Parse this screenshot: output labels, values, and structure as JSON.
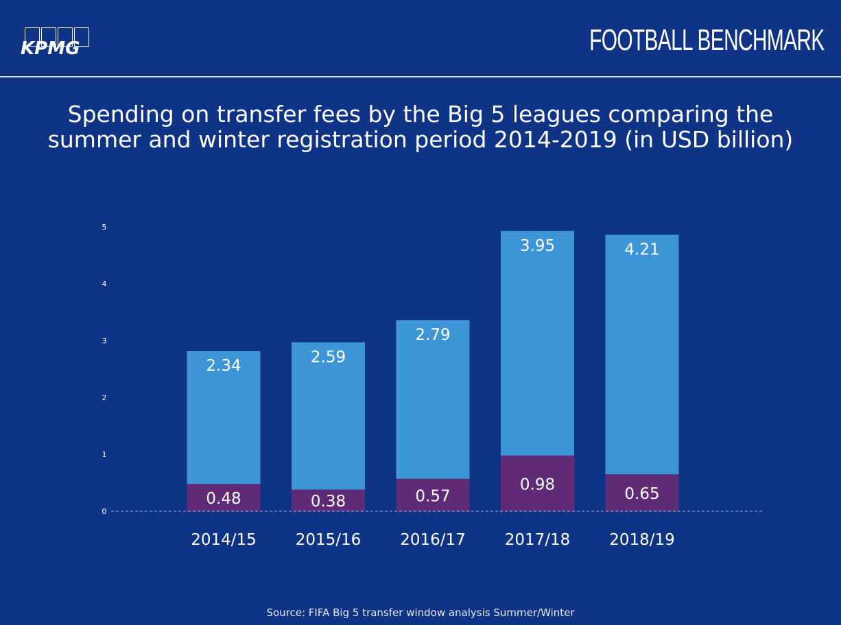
{
  "header": {
    "logo_text": "KPMG",
    "brand": "FOOTBALL BENCHMARK"
  },
  "title_line1": "Spending on transfer fees by the Big 5 leagues comparing the",
  "title_line2": "summer and winter registration period 2014-2019 (in USD billion)",
  "source": "Source: FIFA Big 5 transfer window analysis Summer/Winter",
  "colors": {
    "background": "#0f3385",
    "summer": "#3e95d6",
    "winter": "#5f2b77"
  },
  "chart_data": {
    "type": "bar",
    "stacked": true,
    "categories": [
      "2014/15",
      "2015/16",
      "2016/17",
      "2017/18",
      "2018/19"
    ],
    "series": [
      {
        "values": [
          0.48,
          0.38,
          0.57,
          0.98,
          0.65
        ],
        "color": "#5f2b77"
      },
      {
        "values": [
          2.34,
          2.59,
          2.79,
          3.95,
          4.21
        ],
        "color": "#3e95d6"
      }
    ],
    "yticks": [
      "0",
      "1",
      "2",
      "3",
      "4",
      "5"
    ],
    "ylim": [
      0,
      5
    ],
    "grid": false,
    "legend": false
  }
}
